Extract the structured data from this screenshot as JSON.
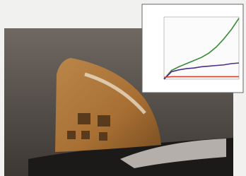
{
  "chart_data": {
    "type": "line",
    "x": [
      0,
      1,
      2,
      3,
      4,
      5,
      6,
      7,
      8,
      9,
      10
    ],
    "xlim": [
      0,
      10
    ],
    "ylim": [
      0,
      1
    ],
    "series": [
      {
        "color": "#3a8a3a",
        "values": [
          0,
          0.14,
          0.2,
          0.25,
          0.3,
          0.35,
          0.42,
          0.52,
          0.65,
          0.8,
          0.98
        ]
      },
      {
        "color": "#4b2d8a",
        "values": [
          0,
          0.12,
          0.15,
          0.17,
          0.18,
          0.2,
          0.21,
          0.22,
          0.23,
          0.25,
          0.26
        ]
      },
      {
        "color": "#d9432a",
        "values": [
          0.03,
          0.04,
          0.04,
          0.04,
          0.04,
          0.04,
          0.04,
          0.04,
          0.04,
          0.04,
          0.04
        ]
      }
    ]
  }
}
